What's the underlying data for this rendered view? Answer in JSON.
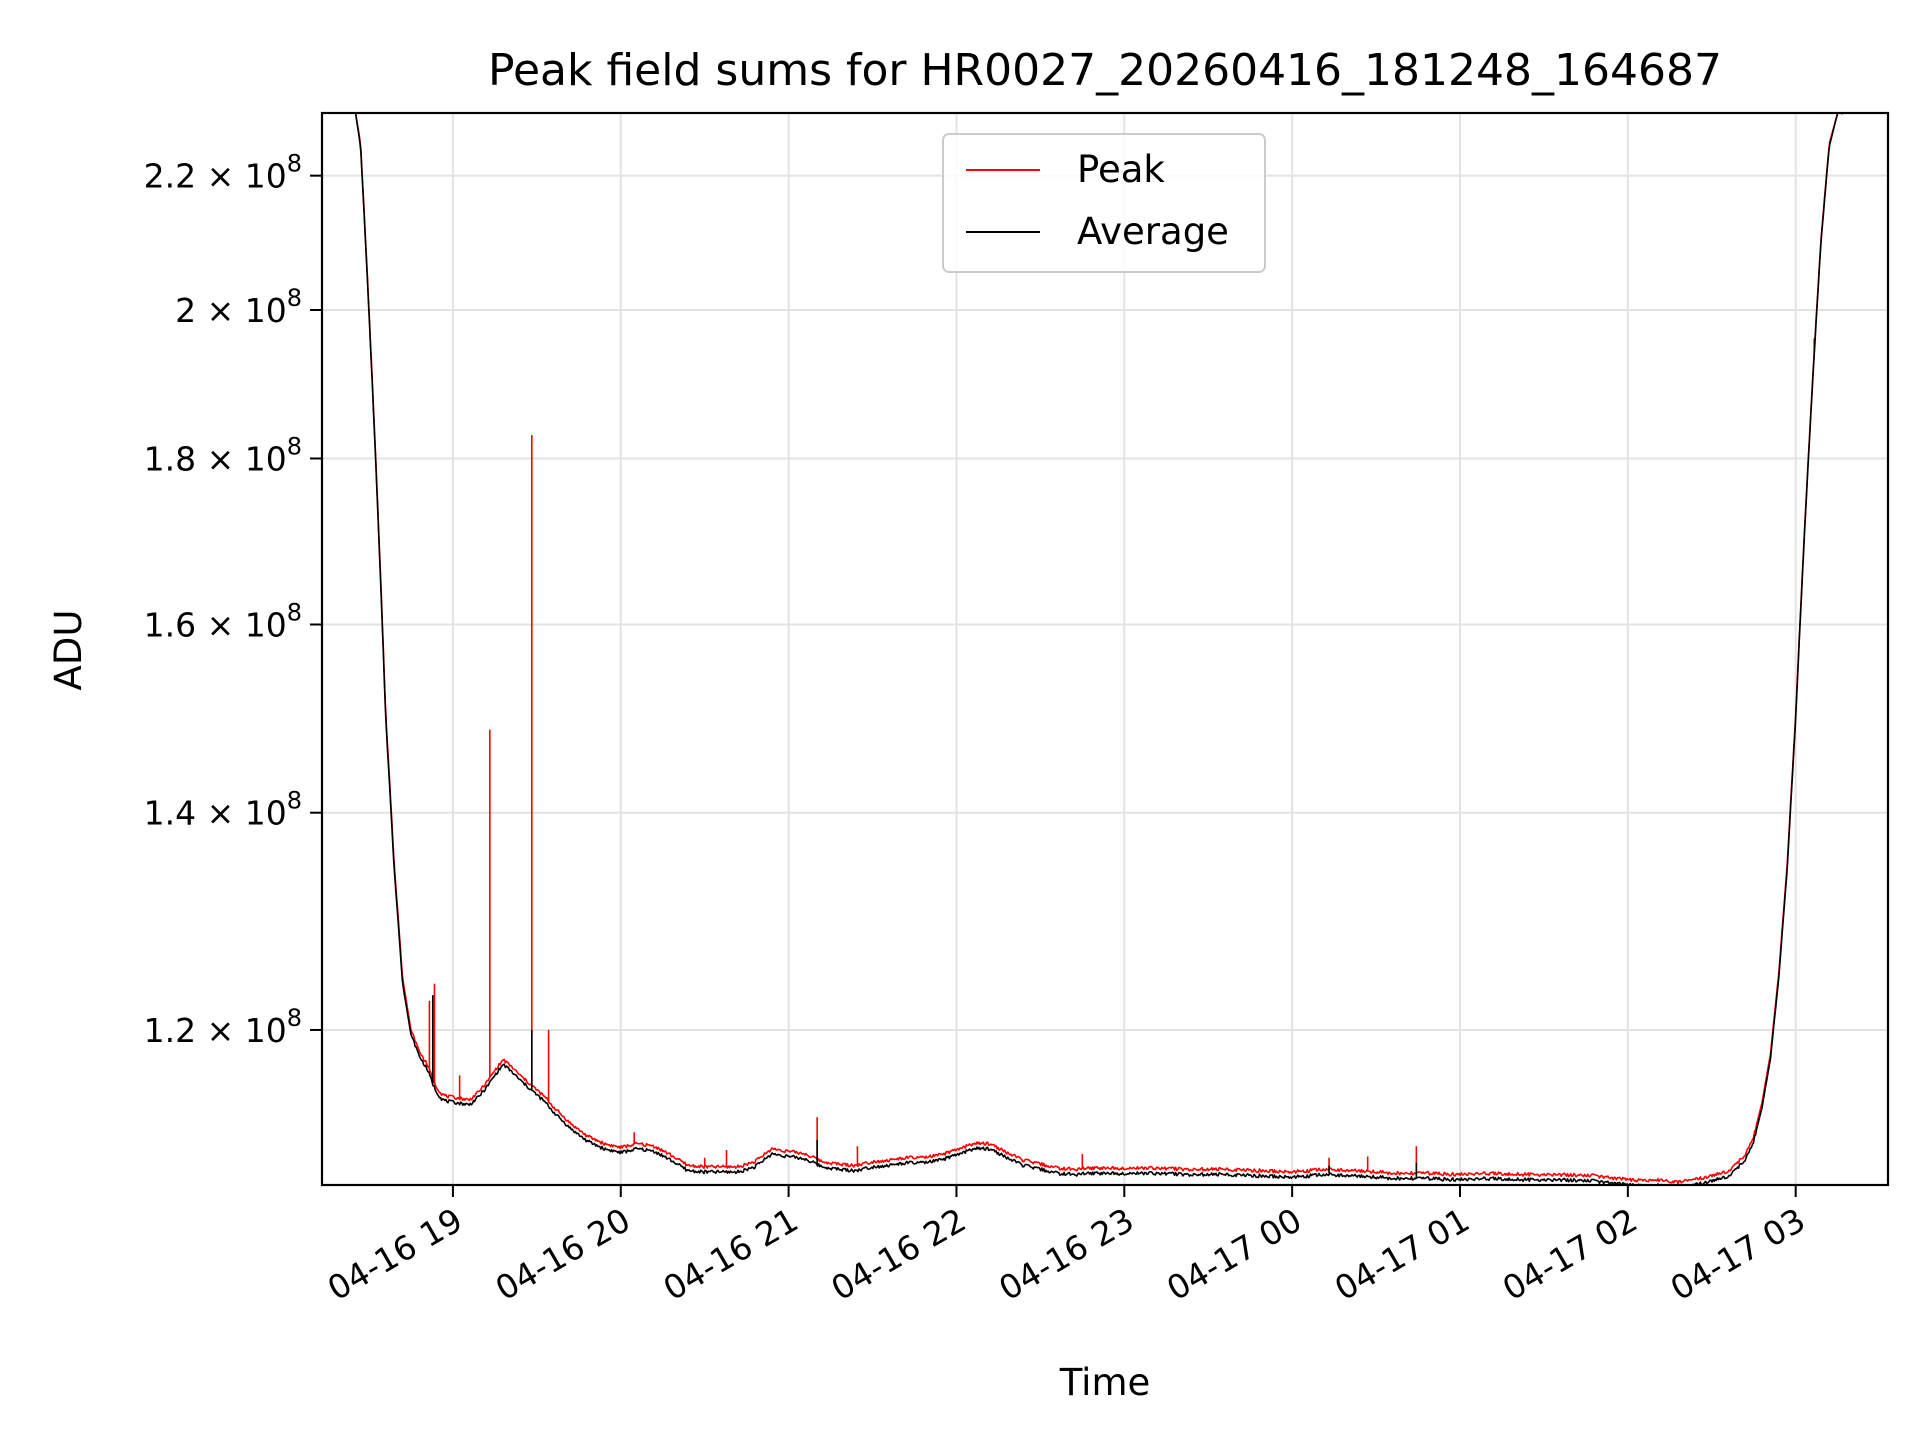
{
  "chart_data": {
    "type": "line",
    "title": "Peak field sums for HR0027_20260416_181248_164687",
    "xlabel": "Time",
    "ylabel": "ADU",
    "yscale": "log",
    "xlim": [
      18.22,
      27.55
    ],
    "ylim": [
      107500000,
      230000000
    ],
    "grid": true,
    "legend_position": "top-center",
    "x_ticks": [
      {
        "value": 19,
        "label": "04-16 19"
      },
      {
        "value": 20,
        "label": "04-16 20"
      },
      {
        "value": 21,
        "label": "04-16 21"
      },
      {
        "value": 22,
        "label": "04-16 22"
      },
      {
        "value": 23,
        "label": "04-16 23"
      },
      {
        "value": 24,
        "label": "04-17 00"
      },
      {
        "value": 25,
        "label": "04-17 01"
      },
      {
        "value": 26,
        "label": "04-17 02"
      },
      {
        "value": 27,
        "label": "04-17 03"
      }
    ],
    "y_ticks": [
      {
        "value": 120000000,
        "base": "1.2 × 10",
        "exp": "8"
      },
      {
        "value": 140000000,
        "base": "1.4 × 10",
        "exp": "8"
      },
      {
        "value": 160000000,
        "base": "1.6 × 10",
        "exp": "8"
      },
      {
        "value": 180000000,
        "base": "1.8 × 10",
        "exp": "8"
      },
      {
        "value": 200000000,
        "base": "2 × 10",
        "exp": "8"
      },
      {
        "value": 220000000,
        "base": "2.2 × 10",
        "exp": "8"
      }
    ],
    "series": [
      {
        "name": "Peak",
        "color": "#ff0000",
        "x": [
          18.42,
          18.45,
          18.48,
          18.52,
          18.56,
          18.6,
          18.65,
          18.7,
          18.75,
          18.8,
          18.85,
          18.88,
          18.9,
          18.93,
          18.96,
          19.0,
          19.05,
          19.1,
          19.15,
          19.2,
          19.25,
          19.3,
          19.35,
          19.4,
          19.45,
          19.5,
          19.55,
          19.6,
          19.7,
          19.8,
          19.9,
          20.0,
          20.1,
          20.2,
          20.3,
          20.4,
          20.5,
          20.6,
          20.7,
          20.8,
          20.9,
          21.0,
          21.1,
          21.2,
          21.3,
          21.4,
          21.5,
          21.6,
          21.7,
          21.8,
          21.9,
          22.0,
          22.1,
          22.2,
          22.3,
          22.4,
          22.5,
          22.6,
          22.7,
          22.8,
          22.9,
          23.0,
          23.2,
          23.4,
          23.6,
          23.8,
          24.0,
          24.2,
          24.4,
          24.6,
          24.8,
          25.0,
          25.2,
          25.4,
          25.6,
          25.8,
          26.0,
          26.1,
          26.2,
          26.3,
          26.4,
          26.5,
          26.6,
          26.7,
          26.75,
          26.8,
          26.85,
          26.9,
          26.95,
          27.0,
          27.05,
          27.1,
          27.15,
          27.2,
          27.25,
          27.28
        ],
        "y": [
          230000000,
          225000000,
          210000000,
          190000000,
          170000000,
          150000000,
          135000000,
          124500000,
          120000000,
          118200000,
          117000000,
          115900000,
          115300000,
          114700000,
          114500000,
          114400000,
          114300000,
          114200000,
          114800000,
          115600000,
          116600000,
          117500000,
          116900000,
          116200000,
          115600000,
          115000000,
          114400000,
          113600000,
          112300000,
          111300000,
          110700000,
          110400000,
          110700000,
          110500000,
          109800000,
          109000000,
          108900000,
          108900000,
          108900000,
          109300000,
          110300000,
          110100000,
          109900000,
          109300000,
          109100000,
          109000000,
          109300000,
          109400000,
          109600000,
          109600000,
          109800000,
          110200000,
          110700000,
          110700000,
          110000000,
          109400000,
          109100000,
          108800000,
          108700000,
          108800000,
          108800000,
          108800000,
          108800000,
          108700000,
          108700000,
          108600000,
          108500000,
          108700000,
          108600000,
          108400000,
          108400000,
          108300000,
          108400000,
          108300000,
          108300000,
          108200000,
          107900000,
          107800000,
          107900000,
          107700000,
          107900000,
          108200000,
          108600000,
          109800000,
          111300000,
          114000000,
          118000000,
          125000000,
          135000000,
          150000000,
          170000000,
          190000000,
          210000000,
          225000000,
          230000000,
          230000000
        ],
        "spikes": [
          {
            "x": 18.86,
            "y": 122500000
          },
          {
            "x": 18.89,
            "y": 124000000
          },
          {
            "x": 19.04,
            "y": 116200000
          },
          {
            "x": 19.22,
            "y": 148500000
          },
          {
            "x": 19.47,
            "y": 183000000
          },
          {
            "x": 19.57,
            "y": 120000000
          },
          {
            "x": 20.08,
            "y": 111600000
          },
          {
            "x": 20.5,
            "y": 109600000
          },
          {
            "x": 20.63,
            "y": 110200000
          },
          {
            "x": 21.17,
            "y": 112800000
          },
          {
            "x": 21.41,
            "y": 110500000
          },
          {
            "x": 22.75,
            "y": 109900000
          },
          {
            "x": 24.22,
            "y": 109600000
          },
          {
            "x": 24.45,
            "y": 109700000
          },
          {
            "x": 24.74,
            "y": 110500000
          },
          {
            "x": 27.11,
            "y": 196000000
          }
        ]
      },
      {
        "name": "Average",
        "color": "#000000",
        "x": [
          18.42,
          18.45,
          18.48,
          18.52,
          18.56,
          18.6,
          18.65,
          18.7,
          18.75,
          18.8,
          18.85,
          18.88,
          18.9,
          18.93,
          18.96,
          19.0,
          19.05,
          19.1,
          19.15,
          19.2,
          19.25,
          19.3,
          19.35,
          19.4,
          19.45,
          19.5,
          19.55,
          19.6,
          19.7,
          19.8,
          19.9,
          20.0,
          20.1,
          20.2,
          20.3,
          20.4,
          20.5,
          20.6,
          20.7,
          20.8,
          20.9,
          21.0,
          21.1,
          21.2,
          21.3,
          21.4,
          21.5,
          21.6,
          21.7,
          21.8,
          21.9,
          22.0,
          22.1,
          22.2,
          22.3,
          22.4,
          22.5,
          22.6,
          22.7,
          22.8,
          22.9,
          23.0,
          23.2,
          23.4,
          23.6,
          23.8,
          24.0,
          24.2,
          24.4,
          24.6,
          24.8,
          25.0,
          25.2,
          25.4,
          25.6,
          25.8,
          26.0,
          26.1,
          26.2,
          26.3,
          26.4,
          26.5,
          26.6,
          26.7,
          26.75,
          26.8,
          26.85,
          26.9,
          26.95,
          27.0,
          27.05,
          27.1,
          27.15,
          27.2,
          27.25,
          27.28
        ],
        "y": [
          230000000,
          224500000,
          209500000,
          189500000,
          169500000,
          149500000,
          134500000,
          124000000,
          119600000,
          117800000,
          116600000,
          115500000,
          114900000,
          114300000,
          114100000,
          114000000,
          113900000,
          113800000,
          114400000,
          115200000,
          116200000,
          117100000,
          116500000,
          115800000,
          115200000,
          114600000,
          114000000,
          113200000,
          111900000,
          110900000,
          110300000,
          110000000,
          110300000,
          110100000,
          109400000,
          108600000,
          108500000,
          108500000,
          108500000,
          108900000,
          109900000,
          109700000,
          109500000,
          108900000,
          108700000,
          108600000,
          108900000,
          109000000,
          109200000,
          109200000,
          109400000,
          109800000,
          110300000,
          110300000,
          109600000,
          109000000,
          108700000,
          108400000,
          108300000,
          108400000,
          108400000,
          108400000,
          108400000,
          108300000,
          108300000,
          108200000,
          108100000,
          108300000,
          108200000,
          108000000,
          108000000,
          107900000,
          108000000,
          107900000,
          107900000,
          107800000,
          107500000,
          107400000,
          107500000,
          107300000,
          107500000,
          107800000,
          108200000,
          109400000,
          110900000,
          113600000,
          117600000,
          124600000,
          134600000,
          149600000,
          169600000,
          189600000,
          209600000,
          224600000,
          230000000,
          230000000
        ],
        "spikes": [
          {
            "x": 18.88,
            "y": 123000000
          },
          {
            "x": 19.47,
            "y": 120000000
          },
          {
            "x": 21.17,
            "y": 111000000
          },
          {
            "x": 24.22,
            "y": 109000000
          },
          {
            "x": 24.74,
            "y": 109200000
          }
        ]
      }
    ],
    "legend": [
      {
        "name": "Peak",
        "color": "#ff0000"
      },
      {
        "name": "Average",
        "color": "#000000"
      }
    ]
  }
}
